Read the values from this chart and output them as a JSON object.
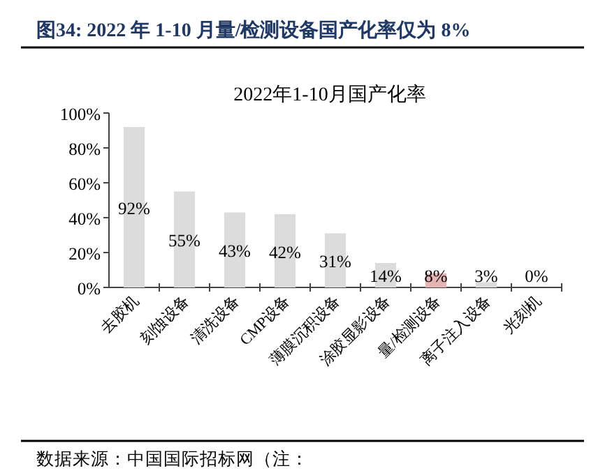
{
  "chart_data": {
    "type": "bar",
    "title": "图34:  2022 年 1-10 月量/检测设备国产化率仅为 8%",
    "subtitle": "2022年1-10月国产化率",
    "categories": [
      "去胶机",
      "刻蚀设备",
      "清洗设备",
      "CMP设备",
      "薄膜沉积设备",
      "涂胶显影设备",
      "量/检测设备",
      "离子注入设备",
      "光刻机"
    ],
    "values": [
      92,
      55,
      43,
      42,
      31,
      14,
      8,
      3,
      0
    ],
    "colors": [
      "#dcdcdc",
      "#dcdcdc",
      "#dcdcdc",
      "#dcdcdc",
      "#dcdcdc",
      "#dcdcdc",
      "#e6b4b4",
      "#dcdcdc",
      "#dcdcdc"
    ],
    "ylim": [
      0,
      100
    ],
    "yticks": [
      {
        "value": 0,
        "label": "0%"
      },
      {
        "value": 20,
        "label": "20%"
      },
      {
        "value": 40,
        "label": "40%"
      },
      {
        "value": 60,
        "label": "60%"
      },
      {
        "value": 80,
        "label": "80%"
      },
      {
        "value": 100,
        "label": "100%"
      }
    ],
    "value_labels": [
      "92%",
      "55%",
      "43%",
      "42%",
      "31%",
      "14%",
      "8%",
      "3%",
      "0%"
    ],
    "grid": false,
    "annotations": [
      "数据来源：中国国际招标网（注："
    ]
  }
}
